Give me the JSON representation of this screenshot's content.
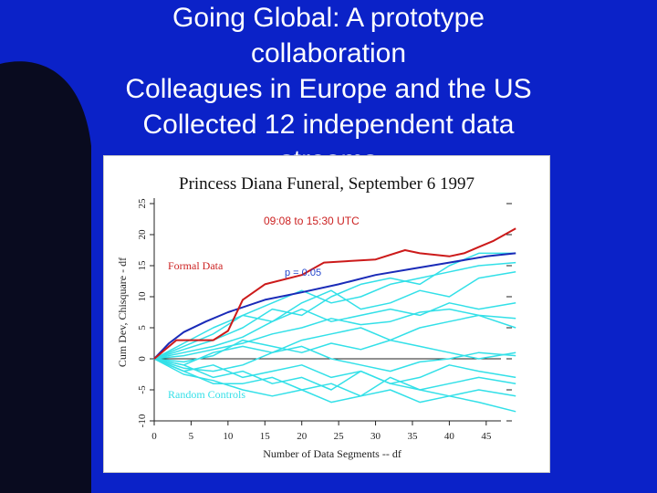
{
  "slide": {
    "title_lines": [
      "Going Global: A prototype",
      "collaboration",
      "Colleagues in Europe and the US",
      "Collected 12 independent data",
      "streams"
    ]
  },
  "colors": {
    "background": "#0b22c8",
    "formal": "#cc1a1a",
    "expectation": "#1a2bb8",
    "controls": "#33e0e8",
    "annotation_red": "#cc2222",
    "annotation_blue": "#2244cc"
  },
  "chart_data": {
    "type": "line",
    "title": "Princess Diana Funeral, September 6 1997",
    "xlabel": "Number of Data Segments -- df",
    "ylabel": "Cum Dev, Chisquare - df",
    "xlim": [
      0,
      50
    ],
    "ylim": [
      -10,
      25
    ],
    "x_ticks": [
      "0",
      "5",
      "10",
      "15",
      "20",
      "25",
      "30",
      "35",
      "40",
      "45"
    ],
    "y_ticks": [
      "-10",
      "-5",
      "0",
      "5",
      "10",
      "15",
      "20",
      "25"
    ],
    "grid": false,
    "annotations": {
      "time_range": "09:08 to 15:30 UTC",
      "formal_label": "Formal Data",
      "p_label": "p = 0.05",
      "controls_label": "Random Controls"
    },
    "formal_series": {
      "name": "Formal Data",
      "x": [
        0,
        3,
        4,
        8,
        10,
        12,
        15,
        20,
        23,
        30,
        34,
        36,
        40,
        42,
        44,
        46,
        49
      ],
      "y": [
        0,
        3,
        3,
        3,
        4.5,
        9.5,
        12,
        13.5,
        15.5,
        16,
        17.5,
        17,
        16.5,
        17,
        18,
        19,
        21
      ]
    },
    "expectation_series": {
      "name": "p = 0.05",
      "x": [
        0,
        2,
        4,
        7,
        10,
        15,
        20,
        25,
        30,
        35,
        40,
        45,
        49
      ],
      "y": [
        0,
        2.5,
        4.3,
        6,
        7.5,
        9.5,
        10.7,
        12,
        13.5,
        14.5,
        15.5,
        16.5,
        17
      ]
    },
    "control_series": [
      {
        "x": [
          0,
          4,
          8,
          12,
          16,
          20,
          24,
          28,
          32,
          36,
          40,
          44,
          49
        ],
        "y": [
          0,
          2.5,
          5,
          7,
          9,
          11,
          9,
          10,
          12,
          13,
          14,
          15,
          15.5
        ]
      },
      {
        "x": [
          0,
          4,
          8,
          12,
          16,
          20,
          24,
          28,
          32,
          36,
          40,
          44,
          49
        ],
        "y": [
          0,
          1.5,
          3,
          5,
          8,
          7,
          10,
          12,
          13,
          12,
          15,
          17,
          17
        ]
      },
      {
        "x": [
          0,
          4,
          8,
          12,
          16,
          20,
          24,
          28,
          32,
          36,
          40,
          44,
          49
        ],
        "y": [
          0,
          2,
          4,
          7,
          6,
          9,
          11,
          8,
          9,
          11,
          10,
          13,
          14
        ]
      },
      {
        "x": [
          0,
          4,
          8,
          12,
          16,
          20,
          24,
          28,
          32,
          36,
          40,
          44,
          49
        ],
        "y": [
          0,
          1,
          2,
          3.5,
          6,
          8,
          6,
          7,
          8,
          7,
          9,
          8,
          9
        ]
      },
      {
        "x": [
          0,
          4,
          8,
          12,
          16,
          20,
          24,
          28,
          32,
          36,
          40,
          44,
          49
        ],
        "y": [
          0,
          0.5,
          1.5,
          2.5,
          4,
          5,
          6.5,
          5.5,
          6,
          7.5,
          8,
          7,
          6.5
        ]
      },
      {
        "x": [
          0,
          4,
          8,
          12,
          16,
          20,
          24,
          28,
          32,
          36,
          40,
          44,
          49
        ],
        "y": [
          0,
          -1,
          1,
          2,
          1,
          3,
          4,
          5,
          3,
          5,
          6,
          7,
          5
        ]
      },
      {
        "x": [
          0,
          4,
          8,
          12,
          16,
          20,
          24,
          28,
          32,
          36,
          40,
          44,
          49
        ],
        "y": [
          0,
          -0.5,
          0.5,
          3,
          2,
          1,
          2.5,
          1.5,
          3,
          2,
          1,
          0,
          1
        ]
      },
      {
        "x": [
          0,
          4,
          8,
          12,
          16,
          20,
          24,
          28,
          32,
          36,
          40,
          44,
          49
        ],
        "y": [
          0,
          -1.5,
          -2,
          -1,
          1,
          2,
          0,
          -1,
          -2,
          -0.5,
          0,
          1,
          0.5
        ]
      },
      {
        "x": [
          0,
          4,
          8,
          12,
          16,
          20,
          24,
          28,
          32,
          36,
          40,
          44,
          49
        ],
        "y": [
          0,
          -2,
          -1,
          -3,
          -2,
          -1,
          -3,
          -2,
          -4,
          -3,
          -1,
          -2,
          -3
        ]
      },
      {
        "x": [
          0,
          4,
          8,
          12,
          16,
          20,
          24,
          28,
          32,
          36,
          40,
          44,
          49
        ],
        "y": [
          0,
          -1,
          -3,
          -2,
          -4,
          -3,
          -5,
          -2,
          -4,
          -5,
          -4,
          -3,
          -4
        ]
      },
      {
        "x": [
          0,
          4,
          8,
          12,
          16,
          20,
          24,
          28,
          32,
          36,
          40,
          44,
          49
        ],
        "y": [
          0,
          -2,
          -4,
          -4,
          -3,
          -5,
          -4,
          -6,
          -3,
          -5,
          -6,
          -5,
          -6
        ]
      },
      {
        "x": [
          0,
          4,
          8,
          12,
          16,
          20,
          24,
          28,
          32,
          36,
          40,
          44,
          49
        ],
        "y": [
          0,
          -2.5,
          -3.5,
          -5,
          -6,
          -5,
          -7,
          -6,
          -5,
          -7,
          -6,
          -7,
          -8.5
        ]
      }
    ]
  }
}
